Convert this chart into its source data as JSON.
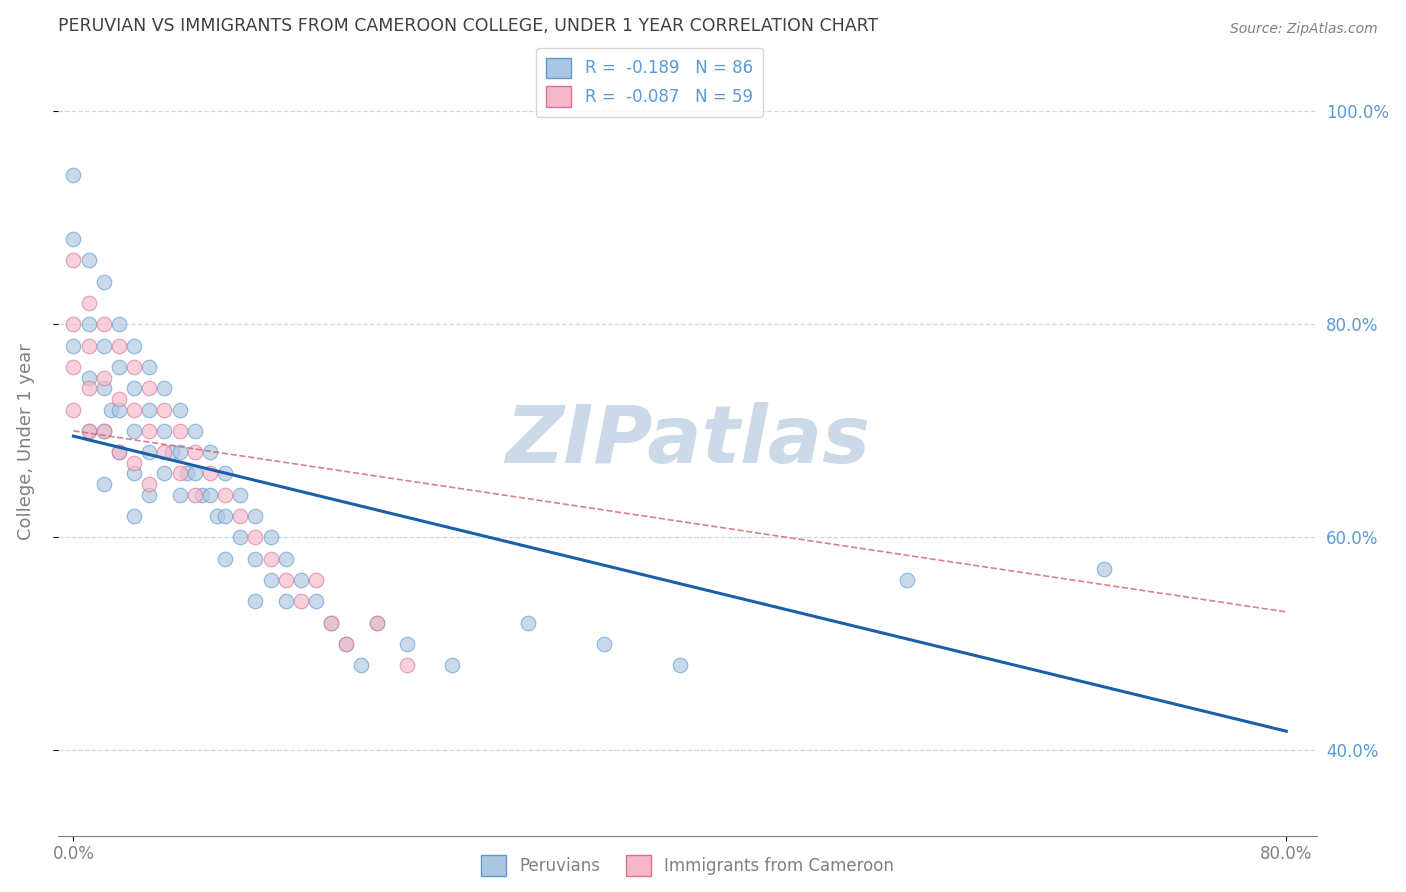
{
  "title": "PERUVIAN VS IMMIGRANTS FROM CAMEROON COLLEGE, UNDER 1 YEAR CORRELATION CHART",
  "source": "Source: ZipAtlas.com",
  "ylabel": "College, Under 1 year",
  "xlim": [
    -0.01,
    0.82
  ],
  "ylim": [
    0.32,
    1.06
  ],
  "legend_entries": [
    {
      "label": "R =  -0.189   N = 86"
    },
    {
      "label": "R =  -0.087   N = 59"
    }
  ],
  "legend_label_1": "Peruvians",
  "legend_label_2": "Immigrants from Cameroon",
  "watermark": "ZIPatlas",
  "blue_scatter_x": [
    0.0,
    0.0,
    0.0,
    0.01,
    0.01,
    0.01,
    0.01,
    0.02,
    0.02,
    0.02,
    0.02,
    0.02,
    0.025,
    0.03,
    0.03,
    0.03,
    0.03,
    0.04,
    0.04,
    0.04,
    0.04,
    0.04,
    0.05,
    0.05,
    0.05,
    0.05,
    0.06,
    0.06,
    0.06,
    0.065,
    0.07,
    0.07,
    0.07,
    0.075,
    0.08,
    0.08,
    0.085,
    0.09,
    0.09,
    0.095,
    0.1,
    0.1,
    0.1,
    0.11,
    0.11,
    0.12,
    0.12,
    0.12,
    0.13,
    0.13,
    0.14,
    0.14,
    0.15,
    0.16,
    0.17,
    0.18,
    0.19,
    0.2,
    0.22,
    0.25,
    0.3,
    0.35,
    0.4,
    0.55,
    0.68
  ],
  "blue_scatter_y": [
    0.94,
    0.88,
    0.78,
    0.86,
    0.8,
    0.75,
    0.7,
    0.84,
    0.78,
    0.74,
    0.7,
    0.65,
    0.72,
    0.8,
    0.76,
    0.72,
    0.68,
    0.78,
    0.74,
    0.7,
    0.66,
    0.62,
    0.76,
    0.72,
    0.68,
    0.64,
    0.74,
    0.7,
    0.66,
    0.68,
    0.72,
    0.68,
    0.64,
    0.66,
    0.7,
    0.66,
    0.64,
    0.68,
    0.64,
    0.62,
    0.66,
    0.62,
    0.58,
    0.64,
    0.6,
    0.62,
    0.58,
    0.54,
    0.6,
    0.56,
    0.58,
    0.54,
    0.56,
    0.54,
    0.52,
    0.5,
    0.48,
    0.52,
    0.5,
    0.48,
    0.52,
    0.5,
    0.48,
    0.56,
    0.57
  ],
  "pink_scatter_x": [
    0.0,
    0.0,
    0.0,
    0.0,
    0.01,
    0.01,
    0.01,
    0.01,
    0.02,
    0.02,
    0.02,
    0.03,
    0.03,
    0.03,
    0.04,
    0.04,
    0.04,
    0.05,
    0.05,
    0.05,
    0.06,
    0.06,
    0.07,
    0.07,
    0.08,
    0.08,
    0.09,
    0.1,
    0.11,
    0.12,
    0.13,
    0.14,
    0.15,
    0.16,
    0.17,
    0.18,
    0.2,
    0.22
  ],
  "pink_scatter_y": [
    0.86,
    0.8,
    0.76,
    0.72,
    0.82,
    0.78,
    0.74,
    0.7,
    0.8,
    0.75,
    0.7,
    0.78,
    0.73,
    0.68,
    0.76,
    0.72,
    0.67,
    0.74,
    0.7,
    0.65,
    0.72,
    0.68,
    0.7,
    0.66,
    0.68,
    0.64,
    0.66,
    0.64,
    0.62,
    0.6,
    0.58,
    0.56,
    0.54,
    0.56,
    0.52,
    0.5,
    0.52,
    0.48
  ],
  "blue_line_x": [
    0.0,
    0.8
  ],
  "blue_line_y_start": 0.695,
  "blue_line_y_end": 0.418,
  "pink_line_x": [
    0.0,
    0.8
  ],
  "pink_line_y_start": 0.7,
  "pink_line_y_end": 0.53,
  "yticks": [
    0.4,
    0.6,
    0.8,
    1.0
  ],
  "ytick_labels": [
    "40.0%",
    "60.0%",
    "80.0%",
    "100.0%"
  ],
  "grid_yticks": [
    0.4,
    0.6,
    0.8,
    1.0
  ],
  "title_color": "#404040",
  "axis_color": "#808080",
  "grid_color": "#c8d8e8",
  "blue_dot_color": "#adc6e0",
  "blue_dot_edge": "#5b9bd5",
  "pink_dot_color": "#f4b8c8",
  "pink_dot_edge": "#e07090",
  "blue_line_color": "#1a5fa8",
  "pink_line_color": "#d06070",
  "watermark_color": "#ccd9e8",
  "right_axis_color": "#5b9bd5",
  "dot_size": 110,
  "dot_alpha": 0.65
}
